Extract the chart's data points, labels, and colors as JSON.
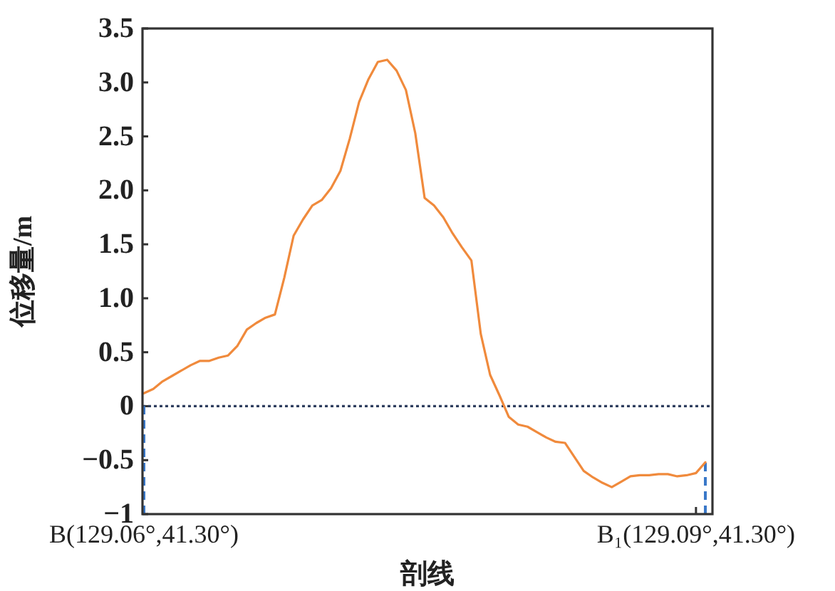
{
  "chart_data": {
    "type": "line",
    "xlabel": "剖线",
    "ylabel": "位移量/m",
    "categories": [
      "B(129.06°,41.30°)",
      null,
      null,
      null,
      null,
      null,
      null,
      null,
      null,
      null,
      null,
      null,
      null,
      null,
      null,
      null,
      null,
      null,
      null,
      null,
      null,
      null,
      null,
      null,
      null,
      null,
      null,
      null,
      null,
      null,
      null,
      null,
      null,
      null,
      null,
      null,
      null,
      null,
      null,
      null,
      null,
      null,
      null,
      null,
      null,
      null,
      null,
      null,
      null,
      null,
      null,
      null,
      null,
      null,
      null,
      null,
      null,
      null,
      null,
      "B₁(129.09°,41.30°)",
      null
    ],
    "series": [
      {
        "color": "#f08a3c",
        "values": [
          0.12,
          0.16,
          0.23,
          0.28,
          0.33,
          0.38,
          0.42,
          0.42,
          0.45,
          0.47,
          0.56,
          0.71,
          0.77,
          0.82,
          0.85,
          1.19,
          1.58,
          1.73,
          1.86,
          1.91,
          2.02,
          2.18,
          2.48,
          2.82,
          3.03,
          3.19,
          3.21,
          3.11,
          2.93,
          2.53,
          1.93,
          1.86,
          1.75,
          1.6,
          1.47,
          1.35,
          0.67,
          0.29,
          0.1,
          -0.1,
          -0.17,
          -0.19,
          -0.24,
          -0.29,
          -0.33,
          -0.34,
          -0.47,
          -0.6,
          -0.66,
          -0.71,
          -0.75,
          -0.7,
          -0.65,
          -0.64,
          -0.64,
          -0.63,
          -0.63,
          -0.65,
          -0.64,
          -0.62,
          -0.52
        ]
      }
    ],
    "ylim": [
      -1,
      3.5
    ],
    "yticks": [
      {
        "value": -1,
        "label": "−1"
      },
      {
        "value": -0.5,
        "label": "−0.5"
      },
      0,
      {
        "value": 0.5,
        "label": "0.5"
      },
      {
        "value": 1,
        "label": "1.0"
      },
      {
        "value": 1.5,
        "label": "1.5"
      },
      {
        "value": 2,
        "label": "2.0"
      },
      {
        "value": 2.5,
        "label": "2.5"
      },
      {
        "value": 3,
        "label": "3.0"
      },
      {
        "value": 3.5,
        "label": "3.5"
      }
    ],
    "ref_lines": [
      {
        "axis": "y",
        "value": 0,
        "color": "#2f3f5f",
        "line_style": "dotted"
      },
      {
        "axis": "x",
        "value": "B(129.06°,41.30°)",
        "color": "#3a78c8",
        "line_style": "dashed"
      }
    ],
    "grid": false,
    "marker": "none",
    "line_style": "solid"
  }
}
